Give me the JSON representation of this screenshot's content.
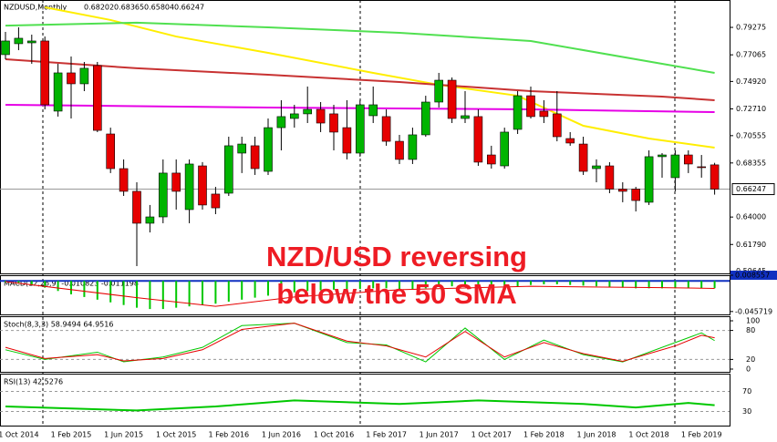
{
  "chart_data": {
    "type": "candlestick",
    "title": "NZDUSD,Monthly",
    "quote": [
      0.68202,
      0.68365,
      0.65804,
      0.66247
    ],
    "annotation": [
      "NZD/USD reversing",
      "below the 50 SMA"
    ],
    "categories": [
      null,
      "1 Oct 2014",
      null,
      null,
      null,
      "1 Feb 2015",
      null,
      null,
      null,
      "1 Jun 2015",
      null,
      null,
      null,
      "1 Oct 2015",
      null,
      null,
      null,
      "1 Feb 2016",
      null,
      null,
      null,
      "1 Jun 2016",
      null,
      null,
      null,
      "1 Oct 2016",
      null,
      null,
      null,
      "1 Feb 2017",
      null,
      null,
      null,
      "1 Jun 2017",
      null,
      null,
      null,
      "1 Oct 2017",
      null,
      null,
      null,
      "1 Feb 2018",
      null,
      null,
      null,
      "1 Jun 2018",
      null,
      null,
      null,
      "1 Oct 2018",
      null,
      null,
      null,
      "1 Feb 2019",
      null
    ],
    "open": [
      0.7708,
      0.7796,
      0.7803,
      0.7818,
      0.7253,
      0.7561,
      0.7473,
      0.762,
      0.7069,
      0.679,
      0.6607,
      0.635,
      0.6401,
      0.6754,
      0.646,
      0.6812,
      0.6585,
      0.6592,
      0.6915,
      0.6974,
      0.6768,
      0.712,
      0.7194,
      0.7231,
      0.7267,
      0.7231,
      0.712,
      0.6915,
      0.7216,
      0.7209,
      0.701,
      0.6864,
      0.7062,
      0.7326,
      0.7502,
      0.7194,
      0.7209,
      0.69,
      0.6812,
      0.7106,
      0.7377,
      0.7253,
      0.7231,
      0.7032,
      0.6988,
      0.679,
      0.6812,
      0.6625,
      0.6625,
      0.6519,
      0.6886,
      0.6717,
      0.69,
      0.6805,
      0.68202
    ],
    "high": [
      0.7891,
      0.7928,
      0.7869,
      0.7854,
      0.7634,
      0.7693,
      0.7649,
      0.7649,
      0.712,
      0.6864,
      0.668,
      0.6497,
      0.6864,
      0.6864,
      0.6864,
      0.6842,
      0.6643,
      0.7047,
      0.7047,
      0.7047,
      0.7194,
      0.7341,
      0.7304,
      0.7451,
      0.7326,
      0.7304,
      0.7341,
      0.7341,
      0.7451,
      0.7267,
      0.7062,
      0.712,
      0.7377,
      0.7561,
      0.7524,
      0.7414,
      0.7267,
      0.6974,
      0.712,
      0.7414,
      0.7451,
      0.7341,
      0.7414,
      0.7084,
      0.7047,
      0.6864,
      0.6842,
      0.668,
      0.6643,
      0.6937,
      0.6915,
      0.6937,
      0.6937,
      0.69,
      0.68365
    ],
    "low": [
      0.7671,
      0.7744,
      0.7634,
      0.7267,
      0.7209,
      0.7194,
      0.7414,
      0.7084,
      0.6754,
      0.657,
      0.6005,
      0.6276,
      0.635,
      0.646,
      0.635,
      0.646,
      0.6423,
      0.657,
      0.6754,
      0.6739,
      0.6739,
      0.6937,
      0.712,
      0.7157,
      0.7084,
      0.6937,
      0.6864,
      0.6886,
      0.7157,
      0.6974,
      0.6827,
      0.6827,
      0.7047,
      0.7282,
      0.7157,
      0.7157,
      0.6812,
      0.679,
      0.679,
      0.7069,
      0.7194,
      0.7157,
      0.701,
      0.6974,
      0.6739,
      0.668,
      0.6592,
      0.6519,
      0.6445,
      0.6497,
      0.6717,
      0.6607,
      0.6754,
      0.6717,
      0.65804
    ],
    "close": [
      0.7818,
      0.784,
      0.7818,
      0.7304,
      0.7561,
      0.7473,
      0.7598,
      0.7098,
      0.679,
      0.6607,
      0.635,
      0.6401,
      0.6754,
      0.6607,
      0.6827,
      0.6497,
      0.6474,
      0.6974,
      0.6988,
      0.679,
      0.712,
      0.7209,
      0.7231,
      0.7267,
      0.7157,
      0.7084,
      0.6915,
      0.7304,
      0.7304,
      0.701,
      0.6864,
      0.7062,
      0.7326,
      0.7502,
      0.7194,
      0.7216,
      0.6842,
      0.6827,
      0.7084,
      0.7377,
      0.7209,
      0.7209,
      0.7047,
      0.6996,
      0.6768,
      0.6812,
      0.6625,
      0.6607,
      0.6533,
      0.6886,
      0.69,
      0.69,
      0.6827,
      0.6801,
      0.66247
    ],
    "up_color": "#00b400",
    "down_color": "#e60000",
    "ylim": [
      0.5946,
      0.8148
    ],
    "yticks": [
      0.79275,
      0.77065,
      {
        "value": 0.7492,
        "label": "0.74920"
      },
      {
        "value": 0.7271,
        "label": "0.72710"
      },
      0.70555,
      0.68355,
      {
        "value": 0.64,
        "label": "0.64000"
      },
      {
        "value": 0.6179,
        "label": "0.61790"
      },
      0.59645
    ],
    "current_price": 0.66247,
    "series": [
      {
        "color": "#ffee00",
        "x": [
          3,
          8,
          13,
          20,
          28,
          33,
          39,
          44,
          49,
          54
        ],
        "values": [
          0.8089,
          0.7987,
          0.7854,
          0.7722,
          0.7561,
          0.7465,
          0.7377,
          0.7135,
          0.7032,
          0.6959
        ]
      },
      {
        "color": "#50e050",
        "x": [
          0,
          10,
          20,
          30,
          40,
          50,
          54
        ],
        "values": [
          0.7942,
          0.7965,
          0.7928,
          0.7884,
          0.7818,
          0.7634,
          0.7561
        ]
      },
      {
        "color": "#c83232",
        "x": [
          0,
          10,
          20,
          30,
          40,
          50,
          54
        ],
        "values": [
          0.7671,
          0.7598,
          0.7546,
          0.7487,
          0.7414,
          0.737,
          0.7341
        ]
      },
      {
        "color": "#e600e6",
        "x": [
          0,
          20,
          40,
          54
        ],
        "values": [
          0.7304,
          0.7282,
          0.7267,
          0.7245
        ]
      }
    ],
    "macd": {
      "title": "MACD(12,26,9) -0.010823 -0.011198",
      "ylim": [
        -0.0514,
        0.008557
      ],
      "yticks": [
        0.008557,
        -0.045719
      ],
      "color": "#00c800",
      "signal_color": "#e60000",
      "histogram": [
        -0.002,
        -0.004,
        -0.006,
        -0.01,
        -0.015,
        -0.02,
        -0.024,
        -0.028,
        -0.032,
        -0.036,
        -0.04,
        -0.042,
        -0.042,
        -0.04,
        -0.038,
        -0.036,
        -0.034,
        -0.031,
        -0.028,
        -0.025,
        -0.022,
        -0.019,
        -0.017,
        -0.015,
        -0.014,
        -0.013,
        -0.013,
        -0.012,
        -0.011,
        -0.011,
        -0.012,
        -0.012,
        -0.011,
        -0.009,
        -0.008,
        -0.007,
        -0.008,
        -0.009,
        -0.009,
        -0.008,
        -0.006,
        -0.005,
        -0.005,
        -0.006,
        -0.007,
        -0.008,
        -0.009,
        -0.01,
        -0.011,
        -0.011,
        -0.011,
        -0.011,
        -0.011,
        -0.011,
        -0.010823
      ],
      "signal": {
        "x": [
          0,
          10,
          16,
          22,
          30,
          40,
          50,
          54
        ],
        "values": [
          -0.001,
          -0.025,
          -0.038,
          -0.024,
          -0.013,
          -0.008,
          -0.01,
          -0.011198
        ]
      }
    },
    "stoch": {
      "title": "Stoch(8,3,3) 58.9494 64.9516",
      "ylim": [
        0,
        100
      ],
      "yticks": [
        100,
        80,
        20,
        0
      ],
      "levels": [
        80,
        20
      ],
      "series": [
        {
          "color": "#00c800",
          "x": [
            0,
            3,
            7,
            9,
            12,
            15,
            18,
            22,
            26,
            29,
            32,
            35,
            38,
            41,
            44,
            47,
            51,
            53,
            54
          ],
          "values": [
            40,
            20,
            35,
            15,
            25,
            45,
            90,
            95,
            55,
            50,
            15,
            85,
            20,
            60,
            30,
            15,
            55,
            75,
            58.9494
          ]
        },
        {
          "color": "#e60000",
          "x": [
            0,
            3,
            7,
            9,
            12,
            15,
            18,
            22,
            26,
            29,
            32,
            35,
            38,
            41,
            44,
            47,
            51,
            53,
            54
          ],
          "values": [
            45,
            22,
            30,
            17,
            22,
            40,
            82,
            95,
            58,
            48,
            25,
            78,
            25,
            55,
            32,
            16,
            48,
            70,
            64.9516
          ]
        }
      ]
    },
    "rsi": {
      "title": "RSI(13) 42.5276",
      "ylim": [
        0,
        100
      ],
      "yticks": [
        70,
        30
      ],
      "color": "#00c800",
      "x": [
        0,
        10,
        16,
        22,
        30,
        36,
        44,
        48,
        52,
        54
      ],
      "values": [
        40,
        32,
        40,
        52,
        45,
        52,
        45,
        38,
        47,
        42.5276
      ]
    }
  }
}
